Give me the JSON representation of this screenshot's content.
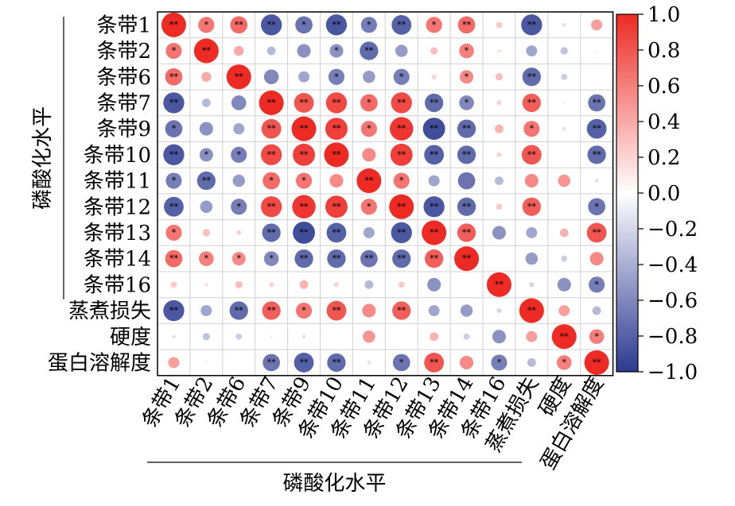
{
  "chart_data": {
    "type": "heatmap",
    "subtype": "correlation-circle-matrix",
    "row_labels": [
      "条带1",
      "条带2",
      "条带6",
      "条带7",
      "条带9",
      "条带10",
      "条带11",
      "条带12",
      "条带13",
      "条带14",
      "条带16",
      "蒸煮损失",
      "硬度",
      "蛋白溶解度"
    ],
    "col_labels": [
      "条带1",
      "条带2",
      "条带6",
      "条带7",
      "条带9",
      "条带10",
      "条带11",
      "条带12",
      "条带13",
      "条带14",
      "条带16",
      "蒸煮损失",
      "硬度",
      "蛋白溶解度"
    ],
    "group_label_rows": "磷酸化水平",
    "group_label_cols": "磷酸化水平",
    "group_rows_count": 11,
    "group_cols_count": 11,
    "colorbar": {
      "min": -1.0,
      "max": 1.0,
      "ticks": [
        "1.0",
        "0.8",
        "0.6",
        "0.4",
        "0.2",
        "0.0",
        "−0.2",
        "−0.4",
        "−0.6",
        "−0.8",
        "−1.0"
      ],
      "negative_color": "#2b3990",
      "zero_color": "#ffffff",
      "positive_color": "#ee2a24"
    },
    "values": [
      [
        1.0,
        0.65,
        0.7,
        -0.85,
        -0.7,
        -0.85,
        -0.65,
        -0.8,
        0.65,
        0.7,
        0.25,
        -0.85,
        -0.15,
        0.45
      ],
      [
        0.65,
        1.0,
        0.4,
        -0.35,
        -0.55,
        -0.55,
        -0.75,
        -0.5,
        0.3,
        0.6,
        0.15,
        -0.45,
        -0.3,
        0.1
      ],
      [
        0.7,
        0.4,
        1.0,
        -0.6,
        -0.45,
        -0.65,
        -0.5,
        -0.65,
        0.2,
        0.55,
        0.3,
        -0.75,
        -0.25,
        0.0
      ],
      [
        -0.85,
        -0.35,
        -0.6,
        1.0,
        0.8,
        0.85,
        0.7,
        0.85,
        -0.75,
        -0.6,
        0.2,
        0.75,
        -0.1,
        -0.7
      ],
      [
        -0.7,
        -0.55,
        -0.45,
        0.8,
        1.0,
        0.9,
        0.65,
        0.95,
        -0.9,
        -0.75,
        0.35,
        0.65,
        -0.15,
        -0.8
      ],
      [
        -0.85,
        -0.55,
        -0.65,
        0.85,
        0.9,
        1.0,
        0.55,
        0.9,
        -0.8,
        -0.75,
        0.2,
        0.8,
        0.05,
        -0.75
      ],
      [
        -0.65,
        -0.75,
        -0.5,
        0.7,
        0.65,
        0.55,
        1.0,
        0.65,
        -0.45,
        -0.7,
        -0.35,
        0.55,
        0.5,
        -0.15
      ],
      [
        -0.8,
        -0.5,
        -0.65,
        0.85,
        0.95,
        0.9,
        0.65,
        1.0,
        -0.85,
        -0.75,
        0.25,
        0.75,
        0.0,
        -0.7
      ],
      [
        0.65,
        0.3,
        0.2,
        -0.75,
        -0.9,
        -0.8,
        -0.45,
        -0.85,
        1.0,
        0.75,
        -0.55,
        -0.45,
        0.35,
        0.8
      ],
      [
        0.7,
        0.6,
        0.55,
        -0.6,
        -0.75,
        -0.75,
        -0.7,
        -0.75,
        0.75,
        1.0,
        0.05,
        -0.5,
        -0.25,
        0.55
      ],
      [
        0.25,
        0.15,
        0.3,
        0.2,
        0.35,
        0.2,
        -0.35,
        0.25,
        -0.55,
        0.05,
        1.0,
        -0.2,
        -0.55,
        -0.65
      ],
      [
        -0.85,
        -0.45,
        -0.75,
        0.75,
        0.65,
        0.8,
        0.55,
        0.75,
        -0.45,
        -0.5,
        -0.2,
        1.0,
        0.45,
        -0.35
      ],
      [
        -0.15,
        -0.3,
        -0.25,
        -0.1,
        -0.15,
        0.05,
        0.5,
        0.0,
        0.35,
        -0.25,
        -0.55,
        0.45,
        1.0,
        0.6
      ],
      [
        0.45,
        0.1,
        0.0,
        -0.7,
        -0.8,
        -0.75,
        -0.15,
        -0.7,
        0.8,
        0.55,
        -0.65,
        -0.35,
        0.6,
        1.0
      ]
    ],
    "significance": [
      [
        "**",
        "*",
        "**",
        "**",
        "*",
        "**",
        "*",
        "**",
        "*",
        "**",
        "",
        "**",
        "",
        ""
      ],
      [
        "*",
        "**",
        "",
        "",
        "",
        "*",
        "**",
        "",
        "",
        "*",
        "",
        "",
        "",
        ""
      ],
      [
        "**",
        "",
        "**",
        "",
        "",
        "*",
        "",
        "*",
        "",
        "*",
        "",
        "**",
        "",
        ""
      ],
      [
        "**",
        "",
        "",
        "**",
        "**",
        "**",
        "*",
        "**",
        "**",
        "*",
        "",
        "**",
        "",
        "**"
      ],
      [
        "*",
        "",
        "",
        "**",
        "**",
        "**",
        "*",
        "**",
        "**",
        "**",
        "",
        "*",
        "",
        "**"
      ],
      [
        "**",
        "*",
        "*",
        "**",
        "**",
        "**",
        "",
        "**",
        "**",
        "**",
        "",
        "**",
        "",
        "**"
      ],
      [
        "*",
        "**",
        "",
        "*",
        "*",
        "",
        "**",
        "*",
        "",
        "",
        "",
        "",
        "",
        ""
      ],
      [
        "**",
        "",
        "*",
        "**",
        "**",
        "**",
        "*",
        "**",
        "**",
        "**",
        "",
        "**",
        "",
        "*"
      ],
      [
        "*",
        "",
        "",
        "**",
        "**",
        "**",
        "",
        "**",
        "**",
        "**",
        "",
        "",
        "",
        "**"
      ],
      [
        "**",
        "*",
        "*",
        "*",
        "**",
        "**",
        "**",
        "**",
        "**",
        "**",
        "",
        "",
        "",
        ""
      ],
      [
        "",
        "",
        "",
        "",
        "",
        "",
        "",
        "",
        "",
        "",
        "**",
        "",
        "",
        "*"
      ],
      [
        "**",
        "",
        "**",
        "**",
        "*",
        "**",
        "",
        "**",
        "",
        "",
        "",
        "**",
        "",
        ""
      ],
      [
        "",
        "",
        "",
        "",
        "",
        "",
        "",
        "",
        "",
        "",
        "",
        "",
        "**",
        "*"
      ],
      [
        "",
        "",
        "",
        "**",
        "**",
        "**",
        "",
        "*",
        "**",
        "",
        "*",
        "",
        "*",
        "**"
      ]
    ]
  }
}
